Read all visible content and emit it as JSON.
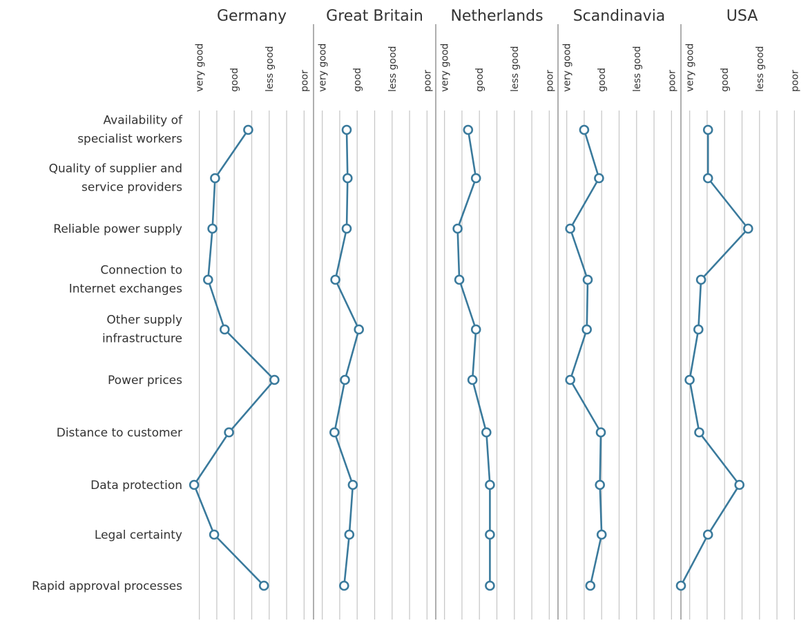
{
  "chart_data": {
    "type": "line",
    "scale": [
      "very good",
      "good",
      "less good",
      "poor"
    ],
    "rows": [
      "Availability of specialist workers",
      "Quality of supplier and service providers",
      "Reliable power supply",
      "Connection to Internet exchanges",
      "Other supply infrastructure",
      "Power prices",
      "Distance to customer",
      "Data protection",
      "Legal certainty",
      "Rapid approval processes"
    ],
    "row_label_lines": [
      [
        "Availability of",
        "specialist workers"
      ],
      [
        "Quality of supplier and",
        "service providers"
      ],
      [
        "Reliable power supply"
      ],
      [
        "Connection to",
        "Internet exchanges"
      ],
      [
        "Other supply",
        "infrastructure"
      ],
      [
        "Power prices"
      ],
      [
        "Distance to customer"
      ],
      [
        "Data protection"
      ],
      [
        "Legal certainty"
      ],
      [
        "Rapid approval processes"
      ]
    ],
    "xlim": [
      0.5,
      7.5
    ],
    "series": [
      {
        "name": "Germany",
        "values": [
          3.8,
          1.9,
          1.75,
          1.5,
          2.45,
          5.3,
          2.7,
          0.7,
          1.85,
          4.7
        ]
      },
      {
        "name": "Great Britain",
        "values": [
          2.4,
          2.45,
          2.4,
          1.75,
          3.1,
          2.3,
          1.7,
          2.75,
          2.55,
          2.25
        ]
      },
      {
        "name": "Netherlands",
        "values": [
          2.35,
          2.8,
          1.75,
          1.85,
          2.8,
          2.6,
          3.4,
          3.6,
          3.6,
          3.6
        ]
      },
      {
        "name": "Scandinavia",
        "values": [
          2.0,
          2.85,
          1.2,
          2.2,
          2.15,
          1.2,
          2.95,
          2.9,
          3.0,
          2.35
        ]
      },
      {
        "name": "USA",
        "values": [
          2.05,
          2.05,
          4.35,
          1.65,
          1.5,
          1.0,
          1.55,
          3.85,
          2.05,
          0.5
        ]
      }
    ],
    "line_color": "#3a7a9c",
    "grid": true
  }
}
